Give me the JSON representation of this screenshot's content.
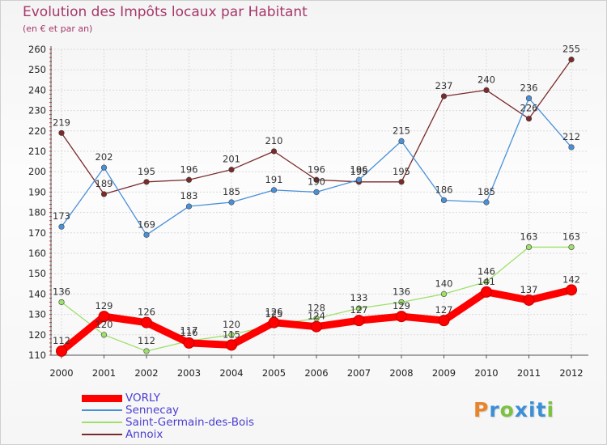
{
  "header": {
    "title": "Evolution des Impôts locaux par Habitant",
    "subtitle": "(en € et par an)"
  },
  "brand": {
    "letters": [
      "P",
      "r",
      "o",
      "x",
      "i",
      "t",
      "i"
    ],
    "colors": [
      "#e8852a",
      "#3a8fd6",
      "#7cc142",
      "#3a8fd6",
      "#3a8fd6",
      "#3a8fd6",
      "#7cc142"
    ]
  },
  "chart_data": {
    "type": "line",
    "title": "Evolution des Impôts locaux par Habitant",
    "subtitle": "(en € et par an)",
    "xlabel": "",
    "ylabel": "",
    "categories": [
      "2000",
      "2001",
      "2002",
      "2003",
      "2004",
      "2005",
      "2006",
      "2007",
      "2008",
      "2009",
      "2010",
      "2011",
      "2012"
    ],
    "ylim": [
      110,
      260
    ],
    "yticks": [
      110,
      120,
      130,
      140,
      150,
      160,
      170,
      180,
      190,
      200,
      210,
      220,
      230,
      240,
      250,
      260
    ],
    "grid": true,
    "legend_position": "bottom-left",
    "series": [
      {
        "name": "VORLY",
        "color": "#ff0000",
        "values": [
          112,
          129,
          126,
          116,
          115,
          126,
          124,
          127,
          129,
          127,
          141,
          137,
          142
        ]
      },
      {
        "name": "Sennecay",
        "color": "#4a90d9",
        "values": [
          173,
          202,
          169,
          183,
          185,
          191,
          190,
          196,
          215,
          186,
          185,
          236,
          212
        ]
      },
      {
        "name": "Saint-Germain-des-Bois",
        "color": "#9ee06a",
        "values": [
          136,
          120,
          112,
          117,
          120,
          125,
          128,
          133,
          136,
          140,
          146,
          163,
          163
        ]
      },
      {
        "name": "Annoix",
        "color": "#7a2a2a",
        "values": [
          219,
          189,
          195,
          196,
          201,
          210,
          196,
          195,
          195,
          237,
          240,
          226,
          255
        ]
      }
    ]
  }
}
